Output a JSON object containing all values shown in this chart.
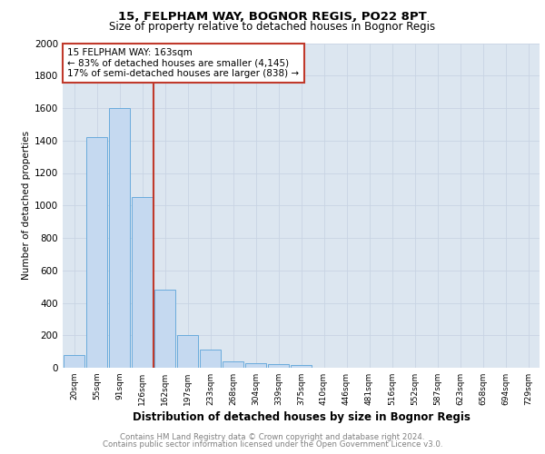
{
  "title1": "15, FELPHAM WAY, BOGNOR REGIS, PO22 8PT",
  "title2": "Size of property relative to detached houses in Bognor Regis",
  "xlabel": "Distribution of detached houses by size in Bognor Regis",
  "ylabel": "Number of detached properties",
  "categories": [
    "20sqm",
    "55sqm",
    "91sqm",
    "126sqm",
    "162sqm",
    "197sqm",
    "233sqm",
    "268sqm",
    "304sqm",
    "339sqm",
    "375sqm",
    "410sqm",
    "446sqm",
    "481sqm",
    "516sqm",
    "552sqm",
    "587sqm",
    "623sqm",
    "658sqm",
    "694sqm",
    "729sqm"
  ],
  "values": [
    80,
    1420,
    1600,
    1050,
    480,
    200,
    110,
    40,
    30,
    20,
    15,
    0,
    0,
    0,
    0,
    0,
    0,
    0,
    0,
    0,
    0
  ],
  "bar_color": "#c5d9f0",
  "bar_edge_color": "#6aabdc",
  "red_line_index": 4,
  "annotation_line1": "15 FELPHAM WAY: 163sqm",
  "annotation_line2": "← 83% of detached houses are smaller (4,145)",
  "annotation_line3": "17% of semi-detached houses are larger (838) →",
  "red_color": "#c0392b",
  "ylim": [
    0,
    2000
  ],
  "yticks": [
    0,
    200,
    400,
    600,
    800,
    1000,
    1200,
    1400,
    1600,
    1800,
    2000
  ],
  "grid_color": "#c8d4e3",
  "bg_color": "#dce6f0",
  "footnote1": "Contains HM Land Registry data © Crown copyright and database right 2024.",
  "footnote2": "Contains public sector information licensed under the Open Government Licence v3.0."
}
